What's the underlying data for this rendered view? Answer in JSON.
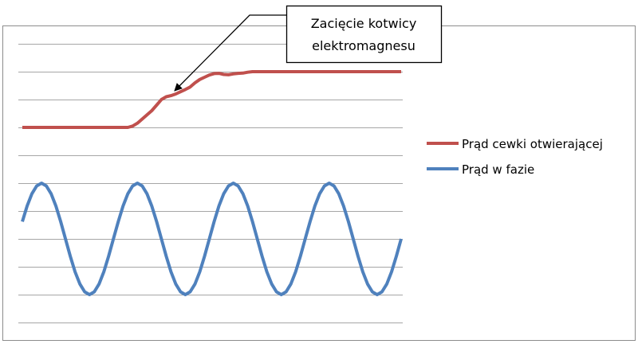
{
  "chart_data": {
    "type": "line",
    "title": "",
    "xlabel": "",
    "ylabel": "",
    "ylim": [
      0,
      10
    ],
    "grid": true,
    "gridlines_y": [
      0,
      1,
      2,
      3,
      4,
      5,
      6,
      7,
      8,
      9,
      10
    ],
    "legend_placement": "right",
    "annotation": {
      "lines": [
        "Zacięcie kotwicy",
        "elektromagnesu"
      ],
      "points_to": {
        "series": 0,
        "x": 32
      }
    },
    "series": [
      {
        "name": "Prąd cewki otwierającej",
        "color": "#c0504d",
        "values": [
          7,
          7,
          7,
          7,
          7,
          7,
          7,
          7,
          7,
          7,
          7,
          7,
          7,
          7,
          7,
          7,
          7,
          7,
          7,
          7,
          7,
          7,
          7,
          7.05,
          7.15,
          7.3,
          7.45,
          7.6,
          7.8,
          8.0,
          8.1,
          8.14,
          8.2,
          8.28,
          8.36,
          8.45,
          8.6,
          8.72,
          8.8,
          8.88,
          8.93,
          8.94,
          8.9,
          8.89,
          8.92,
          8.94,
          8.95,
          8.98,
          9,
          9,
          9,
          9,
          9,
          9,
          9,
          9,
          9,
          9,
          9,
          9,
          9,
          9,
          9,
          9,
          9,
          9,
          9,
          9,
          9,
          9,
          9,
          9,
          9,
          9,
          9,
          9,
          9,
          9,
          9,
          9
        ]
      },
      {
        "name": "Prąd w fazie",
        "color": "#4f81bd",
        "values": [
          3.62,
          4.18,
          4.62,
          4.9,
          5,
          4.9,
          4.62,
          4.18,
          3.62,
          3,
          2.38,
          1.82,
          1.38,
          1.1,
          1,
          1.1,
          1.38,
          1.82,
          2.38,
          3,
          3.62,
          4.18,
          4.62,
          4.9,
          5,
          4.9,
          4.62,
          4.18,
          3.62,
          3,
          2.38,
          1.82,
          1.38,
          1.1,
          1,
          1.1,
          1.38,
          1.82,
          2.38,
          3,
          3.62,
          4.18,
          4.62,
          4.9,
          5,
          4.9,
          4.62,
          4.18,
          3.62,
          3,
          2.38,
          1.82,
          1.38,
          1.1,
          1,
          1.1,
          1.38,
          1.82,
          2.38,
          3,
          3.62,
          4.18,
          4.62,
          4.9,
          5,
          4.9,
          4.62,
          4.18,
          3.62,
          3,
          2.38,
          1.82,
          1.38,
          1.1,
          1,
          1.1,
          1.38,
          1.82,
          2.38,
          3
        ]
      }
    ]
  }
}
